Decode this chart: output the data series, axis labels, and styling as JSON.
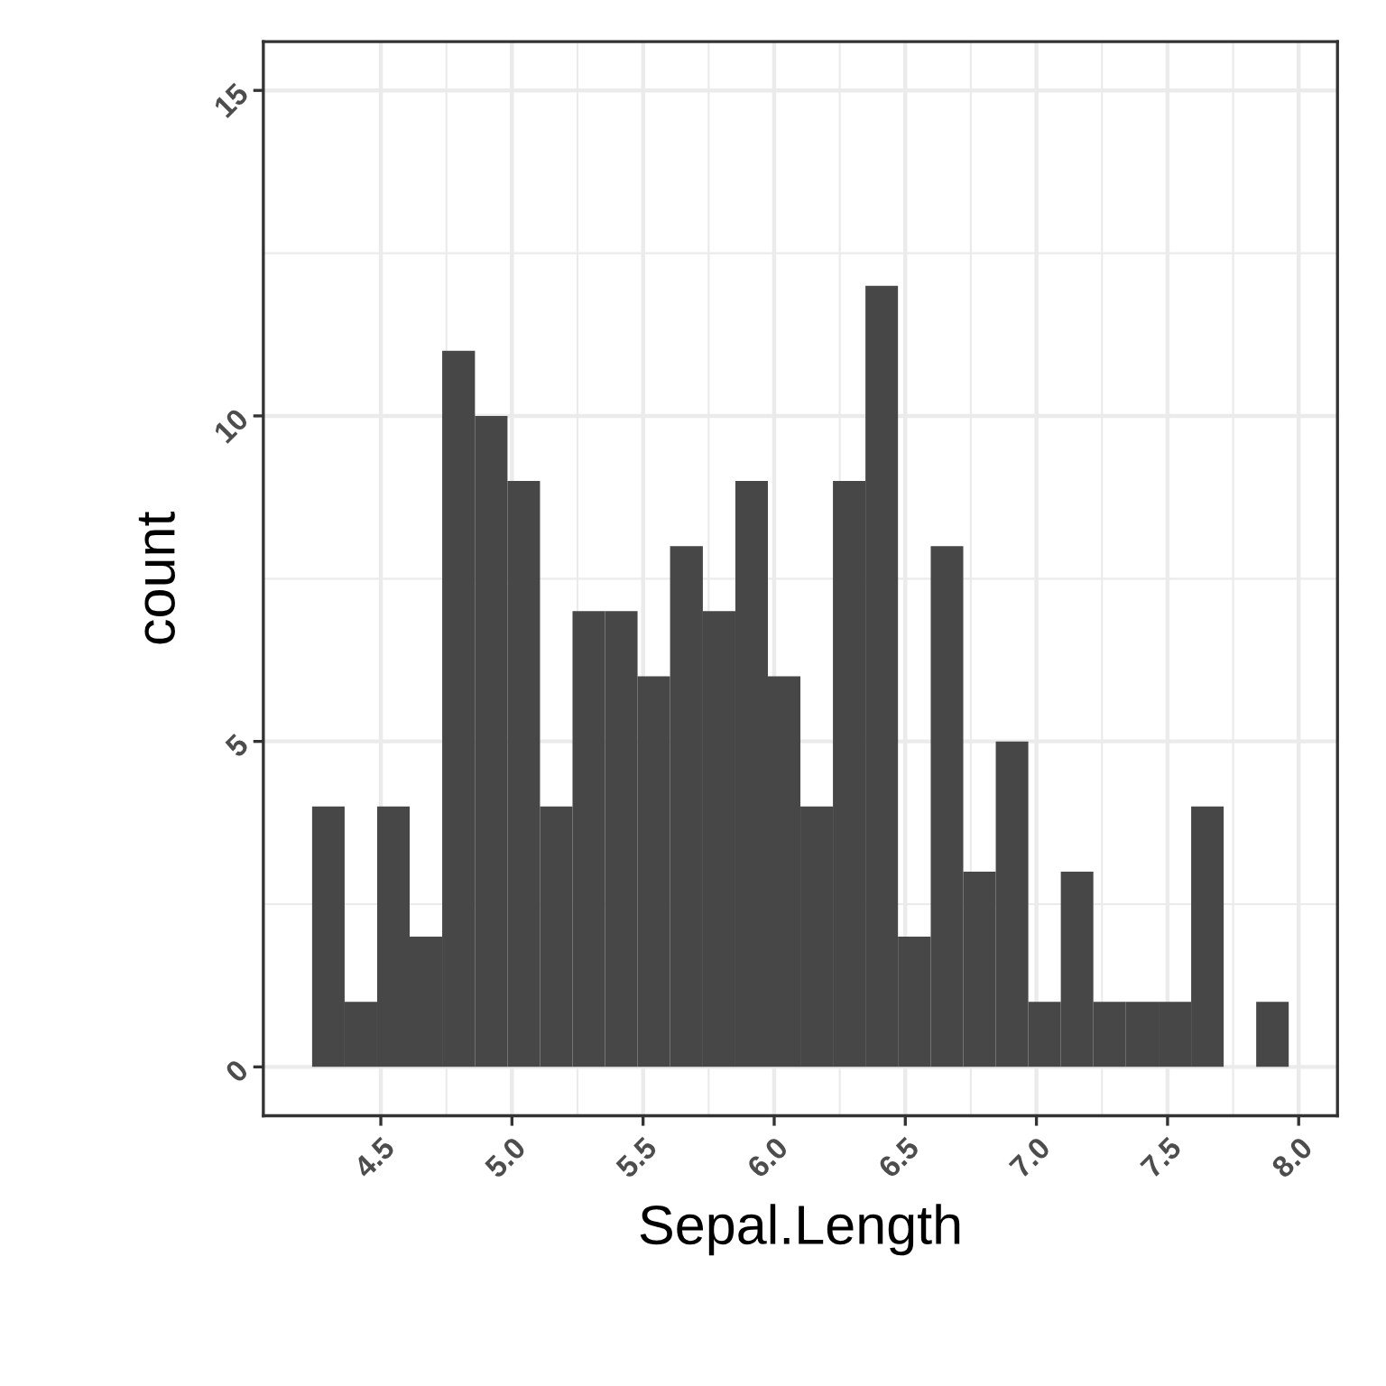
{
  "chart_data": {
    "type": "histogram",
    "xlabel": "Sepal.Length",
    "ylabel": "count",
    "color": "#474747",
    "bins": [
      4.238,
      4.362,
      4.486,
      4.61,
      4.734,
      4.859,
      4.983,
      5.107,
      5.231,
      5.355,
      5.479,
      5.603,
      5.728,
      5.852,
      5.976,
      6.1,
      6.224,
      6.348,
      6.472,
      6.597,
      6.721,
      6.845,
      6.969,
      7.093,
      7.217,
      7.341,
      7.466,
      7.59,
      7.714,
      7.838,
      7.962
    ],
    "values": [
      4,
      1,
      4,
      2,
      11,
      10,
      9,
      4,
      7,
      7,
      6,
      8,
      7,
      9,
      6,
      4,
      9,
      12,
      2,
      8,
      3,
      5,
      1,
      3,
      1,
      1,
      1,
      4,
      0,
      1
    ],
    "xlim": [
      4.052,
      8.148
    ],
    "xticks": [
      {
        "value": 4.5,
        "label": "4.5"
      },
      {
        "value": 5,
        "label": "5.0"
      },
      {
        "value": 5.5,
        "label": "5.5"
      },
      {
        "value": 6,
        "label": "6.0"
      },
      {
        "value": 6.5,
        "label": "6.5"
      },
      {
        "value": 7,
        "label": "7.0"
      },
      {
        "value": 7.5,
        "label": "7.5"
      },
      {
        "value": 8,
        "label": "8.0"
      }
    ],
    "ylim": [
      -0.75,
      15.75
    ],
    "yticks": [
      0,
      5,
      10,
      15
    ],
    "grid": true
  }
}
